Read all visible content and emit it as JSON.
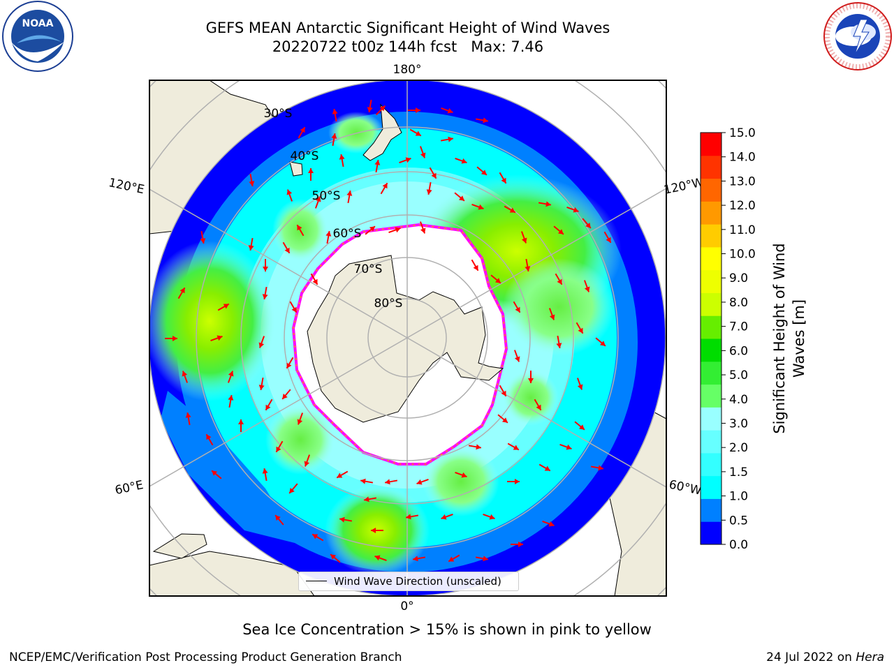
{
  "header": {
    "title_line1": "GEFS MEAN Antarctic Significant Height of Wind Waves",
    "title_line2": "20220722 t00z 144h fcst   Max: 7.46"
  },
  "map": {
    "longitude_labels": {
      "top": "180°",
      "bottom": "0°",
      "left_upper": "120°E",
      "left_lower": "60°E",
      "right_upper": "120°W",
      "right_lower": "60°W"
    },
    "latitude_labels": [
      "30°S",
      "40°S",
      "50°S",
      "60°S",
      "70°S",
      "80°S"
    ],
    "legend_label": "Wind Wave Direction (unscaled)",
    "arrow_color": "#ff0000",
    "land_color": "#efecdc",
    "ice_edge_colors": [
      "#ff00ff",
      "#ffa500",
      "#ffff00"
    ]
  },
  "colorbar": {
    "label": "Significant Height of Wind Waves [m]",
    "label_line1": "Significant Height of Wind",
    "label_line2": "Waves [m]",
    "ticks": [
      "0.0",
      "0.5",
      "1.0",
      "1.5",
      "2.0",
      "3.0",
      "4.0",
      "5.0",
      "6.0",
      "7.0",
      "8.0",
      "9.0",
      "10.0",
      "11.0",
      "12.0",
      "13.0",
      "14.0",
      "15.0"
    ],
    "colors": [
      "#0000ff",
      "#0080ff",
      "#00ffff",
      "#33ffff",
      "#66ffff",
      "#99ffff",
      "#66ff66",
      "#33ee33",
      "#00dd00",
      "#66ee00",
      "#ccff00",
      "#eeff00",
      "#ffff00",
      "#ffcc00",
      "#ff9900",
      "#ff6600",
      "#ff3300",
      "#ff0000"
    ]
  },
  "caption": "Sea Ice Concentration > 15% is shown in pink to yellow",
  "footer": {
    "left": "NCEP/EMC/Verification Post Processing Product Generation Branch",
    "right_prefix": "24 Jul 2022 on ",
    "right_host": "Hera"
  },
  "logos": {
    "noaa": "NOAA",
    "nws": "NATIONAL WEATHER SERVICE"
  }
}
